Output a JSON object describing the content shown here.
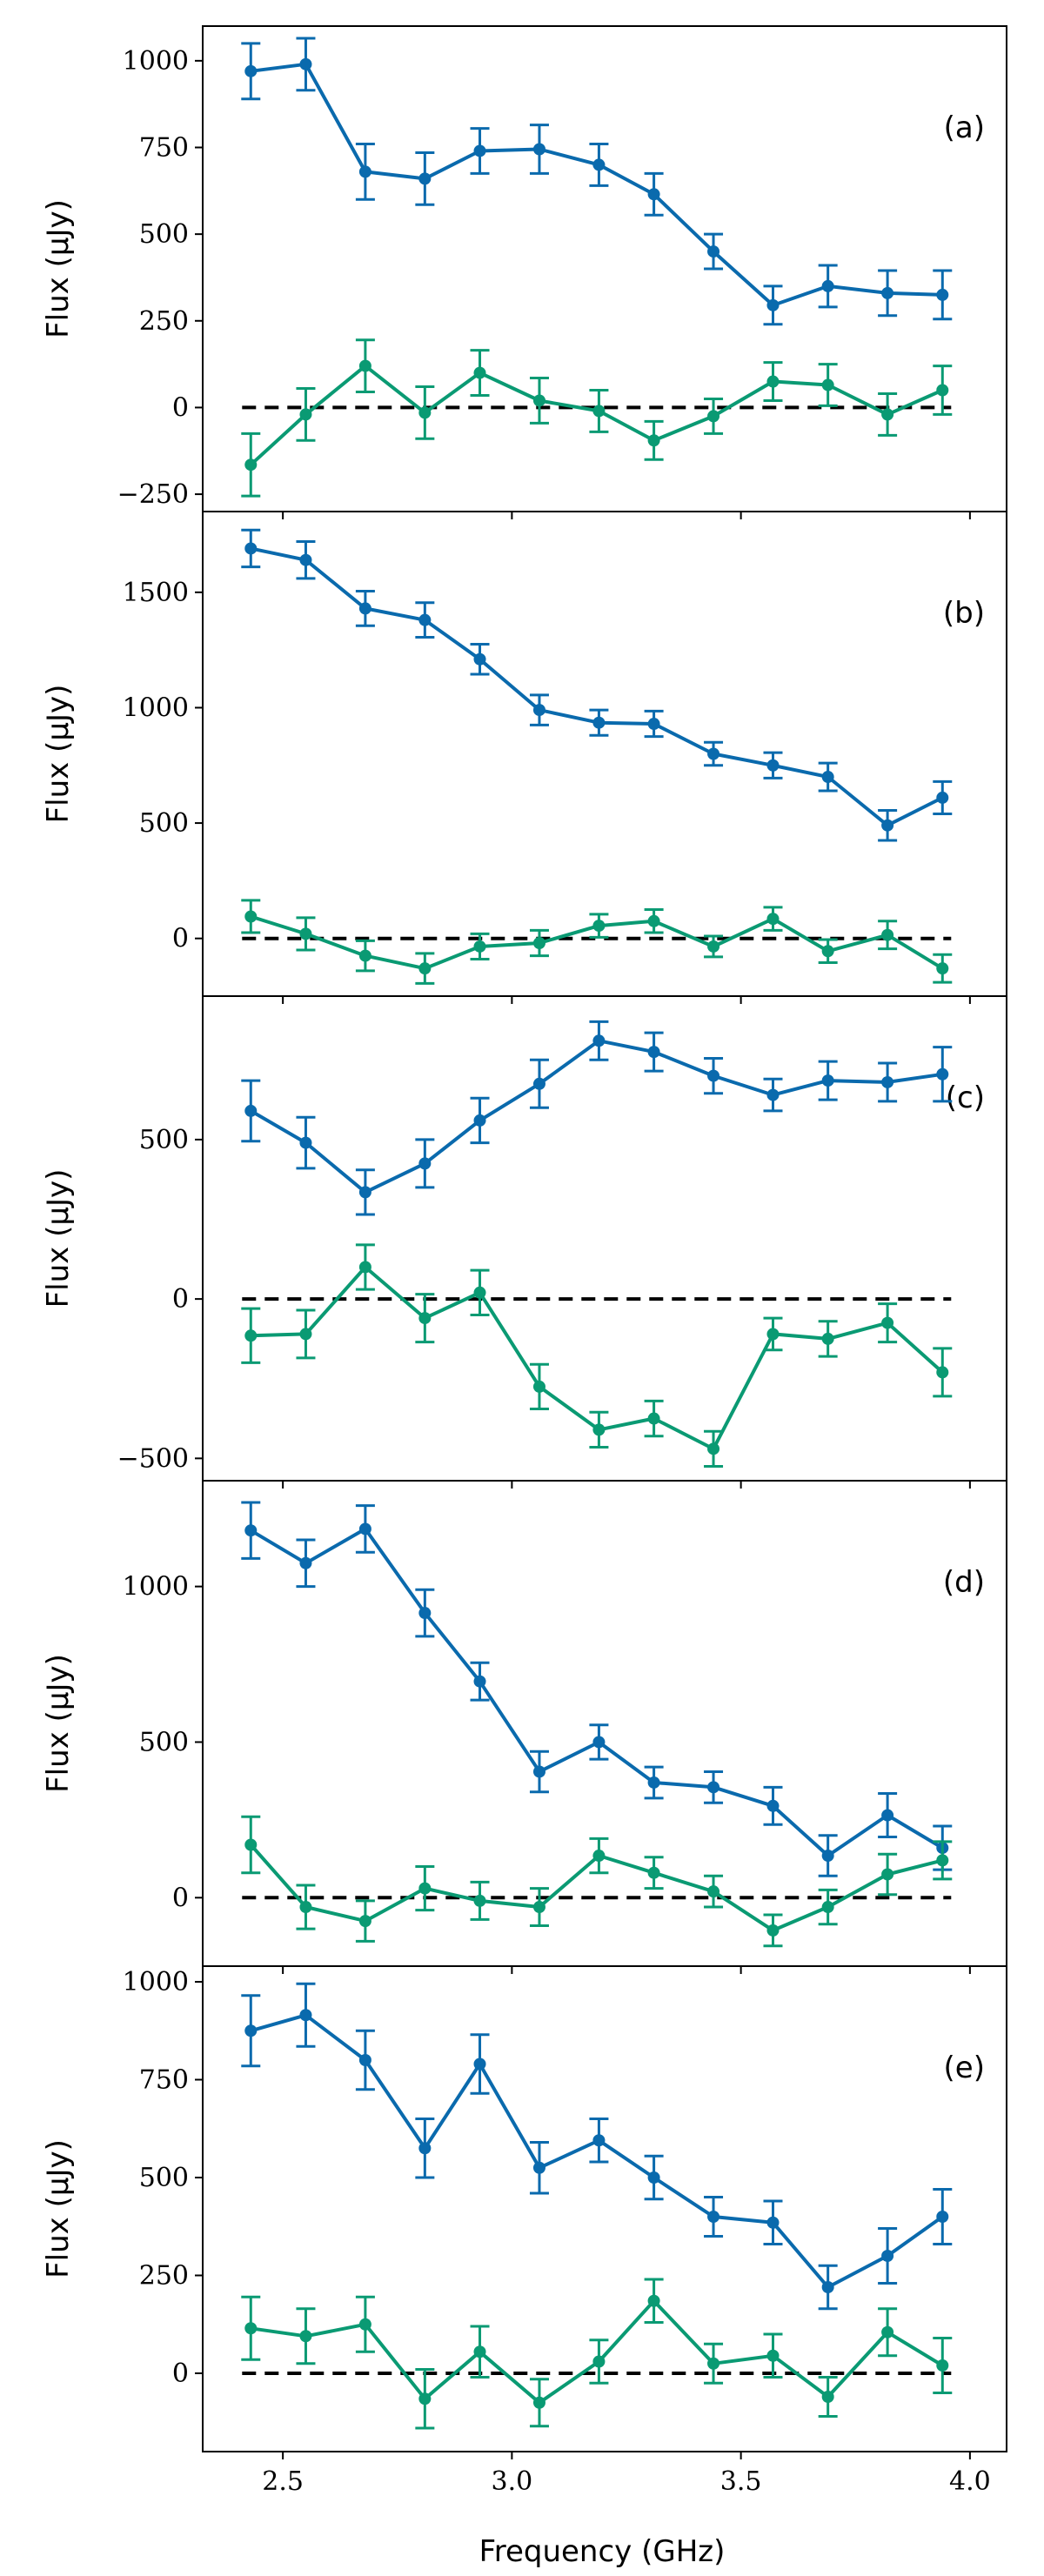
{
  "colors": {
    "blue": "#0a6aad",
    "green": "#0a9a73",
    "zero_line": "#000000"
  },
  "xlabel": "Frequency (GHz)",
  "x_ticks": [
    "2.5",
    "3.0",
    "3.5",
    "4.0"
  ],
  "chart_data": [
    {
      "type": "line",
      "panel_label": "(a)",
      "ylabel": "Flux (μJy)",
      "yticks": [
        {
          "v": 1000,
          "t": "1000"
        },
        {
          "v": 750,
          "t": "750"
        },
        {
          "v": 500,
          "t": "500"
        },
        {
          "v": 250,
          "t": "250"
        },
        {
          "v": 0,
          "t": "0"
        },
        {
          "v": -250,
          "t": "−250"
        }
      ],
      "ylim": [
        -300,
        1100
      ],
      "x": [
        2.43,
        2.55,
        2.68,
        2.81,
        2.93,
        3.06,
        3.19,
        3.31,
        3.44,
        3.57,
        3.69,
        3.82,
        3.94
      ],
      "series": [
        {
          "color": "blue",
          "values": [
            970,
            990,
            680,
            660,
            740,
            745,
            700,
            615,
            450,
            295,
            350,
            330,
            325
          ],
          "errors": [
            80,
            75,
            80,
            75,
            65,
            70,
            60,
            60,
            50,
            55,
            60,
            65,
            70
          ]
        },
        {
          "color": "green",
          "values": [
            -165,
            -20,
            120,
            -15,
            100,
            20,
            -10,
            -95,
            -25,
            75,
            65,
            -20,
            50
          ],
          "errors": [
            90,
            75,
            75,
            75,
            65,
            65,
            60,
            55,
            50,
            55,
            60,
            60,
            70
          ]
        }
      ]
    },
    {
      "type": "line",
      "panel_label": "(b)",
      "ylabel": "Flux (μJy)",
      "yticks": [
        {
          "v": 1500,
          "t": "1500"
        },
        {
          "v": 1000,
          "t": "1000"
        },
        {
          "v": 500,
          "t": "500"
        },
        {
          "v": 0,
          "t": "0"
        }
      ],
      "ylim": [
        -250,
        1850
      ],
      "x": [
        2.43,
        2.55,
        2.68,
        2.81,
        2.93,
        3.06,
        3.19,
        3.31,
        3.44,
        3.57,
        3.69,
        3.82,
        3.94
      ],
      "series": [
        {
          "color": "blue",
          "values": [
            1690,
            1640,
            1430,
            1380,
            1210,
            990,
            935,
            930,
            800,
            750,
            700,
            490,
            610
          ],
          "errors": [
            80,
            80,
            75,
            75,
            65,
            65,
            55,
            55,
            50,
            55,
            60,
            65,
            70
          ]
        },
        {
          "color": "green",
          "values": [
            95,
            20,
            -75,
            -130,
            -35,
            -20,
            55,
            75,
            -35,
            85,
            -55,
            15,
            -130
          ],
          "errors": [
            70,
            70,
            65,
            65,
            55,
            55,
            50,
            50,
            45,
            50,
            50,
            60,
            60
          ]
        }
      ]
    },
    {
      "type": "line",
      "panel_label": "(c)",
      "ylabel": "Flux (μJy)",
      "yticks": [
        {
          "v": 500,
          "t": "500"
        },
        {
          "v": 0,
          "t": "0"
        },
        {
          "v": -500,
          "t": "−500"
        }
      ],
      "ylim": [
        -570,
        950
      ],
      "x": [
        2.43,
        2.55,
        2.68,
        2.81,
        2.93,
        3.06,
        3.19,
        3.31,
        3.44,
        3.57,
        3.69,
        3.82,
        3.94
      ],
      "series": [
        {
          "color": "blue",
          "values": [
            590,
            490,
            335,
            425,
            560,
            675,
            810,
            775,
            700,
            640,
            685,
            680,
            705
          ],
          "errors": [
            95,
            80,
            70,
            75,
            70,
            75,
            60,
            60,
            55,
            50,
            60,
            60,
            85
          ]
        },
        {
          "color": "green",
          "values": [
            -115,
            -110,
            100,
            -60,
            20,
            -275,
            -410,
            -375,
            -470,
            -110,
            -125,
            -75,
            -230
          ],
          "errors": [
            85,
            75,
            70,
            75,
            70,
            70,
            55,
            55,
            55,
            50,
            55,
            60,
            75
          ]
        }
      ]
    },
    {
      "type": "line",
      "panel_label": "(d)",
      "ylabel": "Flux (μJy)",
      "yticks": [
        {
          "v": 1000,
          "t": "1000"
        },
        {
          "v": 500,
          "t": "500"
        },
        {
          "v": 0,
          "t": "0"
        }
      ],
      "ylim": [
        -220,
        1340
      ],
      "x": [
        2.43,
        2.55,
        2.68,
        2.81,
        2.93,
        3.06,
        3.19,
        3.31,
        3.44,
        3.57,
        3.69,
        3.82,
        3.94
      ],
      "series": [
        {
          "color": "blue",
          "values": [
            1180,
            1075,
            1185,
            915,
            695,
            405,
            500,
            370,
            355,
            295,
            135,
            265,
            160
          ],
          "errors": [
            90,
            75,
            75,
            75,
            60,
            65,
            55,
            50,
            50,
            60,
            65,
            70,
            70
          ]
        },
        {
          "color": "green",
          "values": [
            170,
            -30,
            -75,
            30,
            -10,
            -30,
            135,
            80,
            20,
            -105,
            -30,
            75,
            120
          ],
          "errors": [
            90,
            70,
            65,
            70,
            60,
            60,
            55,
            50,
            50,
            50,
            55,
            65,
            60
          ]
        }
      ]
    },
    {
      "type": "line",
      "panel_label": "(e)",
      "ylabel": "Flux (μJy)",
      "yticks": [
        {
          "v": 1000,
          "t": "1000"
        },
        {
          "v": 750,
          "t": "750"
        },
        {
          "v": 500,
          "t": "500"
        },
        {
          "v": 250,
          "t": "250"
        },
        {
          "v": 0,
          "t": "0"
        }
      ],
      "ylim": [
        -200,
        1040
      ],
      "x": [
        2.43,
        2.55,
        2.68,
        2.81,
        2.93,
        3.06,
        3.19,
        3.31,
        3.44,
        3.57,
        3.69,
        3.82,
        3.94
      ],
      "series": [
        {
          "color": "blue",
          "values": [
            875,
            915,
            800,
            575,
            790,
            525,
            595,
            500,
            400,
            385,
            220,
            300,
            400
          ],
          "errors": [
            90,
            80,
            75,
            75,
            75,
            65,
            55,
            55,
            50,
            55,
            55,
            70,
            70
          ]
        },
        {
          "color": "green",
          "values": [
            115,
            95,
            125,
            -65,
            55,
            -75,
            30,
            185,
            25,
            45,
            -60,
            105,
            20
          ],
          "errors": [
            80,
            70,
            70,
            75,
            65,
            60,
            55,
            55,
            50,
            55,
            50,
            60,
            70
          ]
        }
      ]
    }
  ]
}
